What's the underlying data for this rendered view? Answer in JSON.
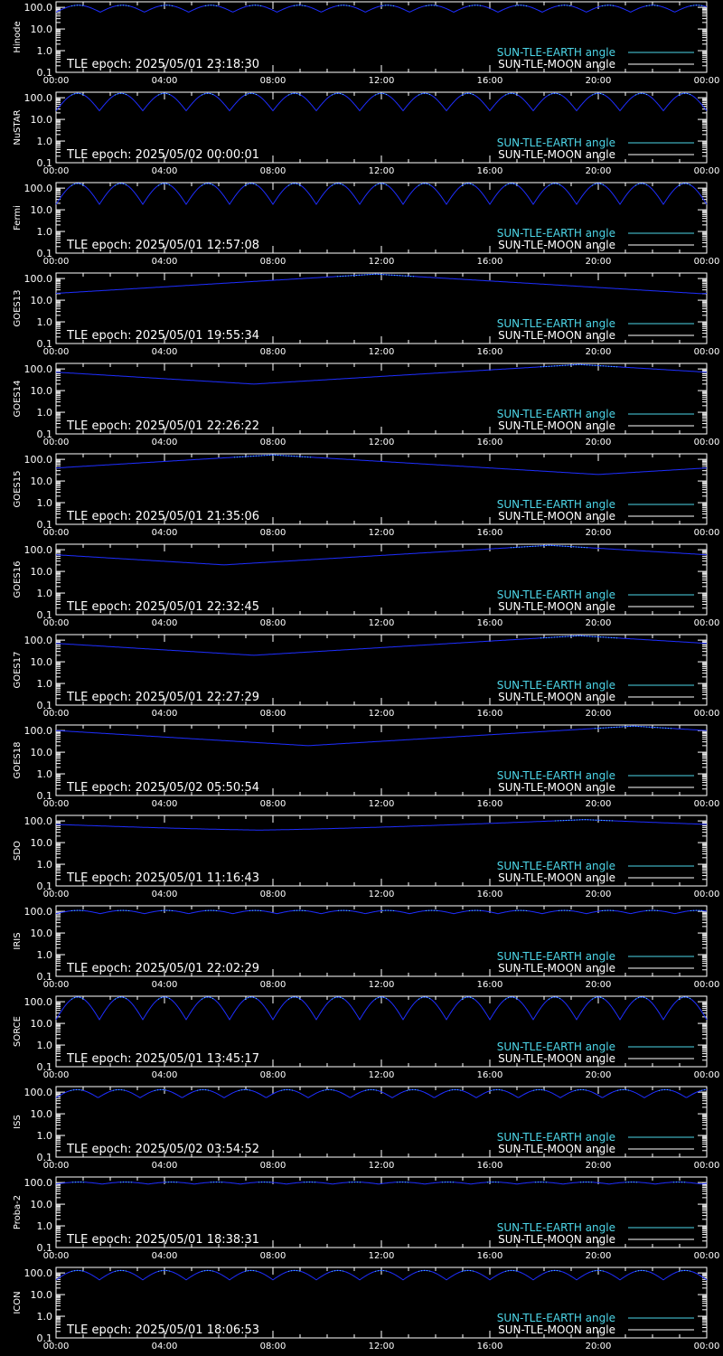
{
  "chart_data": {
    "type": "line",
    "x_tick_labels": [
      "00:00",
      "04:00",
      "08:00",
      "12:00",
      "16:00",
      "20:00",
      "00:00"
    ],
    "x_range_hours": [
      0,
      24
    ],
    "y_scale": "log",
    "ylim": [
      0.1,
      180
    ],
    "y_tick_labels": [
      "0.1",
      "1.0",
      "10.0",
      "100.0"
    ],
    "y_tick_values": [
      0.1,
      1,
      10,
      100
    ],
    "legend": {
      "position": "bottom-right",
      "entries": [
        {
          "label": "SUN-TLE-EARTH angle",
          "color": "#4dd6e8"
        },
        {
          "label": "SUN-TLE-MOON angle",
          "color": "#ffffff"
        }
      ]
    },
    "curve_color": "#1e2eff",
    "panels": [
      {
        "satellite": "Hinode",
        "epoch": "TLE epoch: 2025/05/01 23:18:30",
        "kind": "orbit",
        "period_hours": 1.63,
        "min_deg": 60,
        "max_deg": 125
      },
      {
        "satellite": "NuSTAR",
        "epoch": "TLE epoch: 2025/05/02 00:00:01",
        "kind": "orbit",
        "period_hours": 1.6,
        "min_deg": 25,
        "max_deg": 160
      },
      {
        "satellite": "Fermi",
        "epoch": "TLE epoch: 2025/05/01 12:57:08",
        "kind": "orbit",
        "period_hours": 1.6,
        "min_deg": 18,
        "max_deg": 165
      },
      {
        "satellite": "GOES13",
        "epoch": "TLE epoch: 2025/05/01 19:55:34",
        "kind": "geo",
        "min_time_hours": 23.8,
        "min_deg": 20,
        "max_deg": 160
      },
      {
        "satellite": "GOES14",
        "epoch": "TLE epoch: 2025/05/01 22:26:22",
        "kind": "geo",
        "min_time_hours": 7.3,
        "min_deg": 20,
        "max_deg": 160
      },
      {
        "satellite": "GOES15",
        "epoch": "TLE epoch: 2025/05/01 21:35:06",
        "kind": "geo",
        "min_time_hours": 20.0,
        "min_deg": 20,
        "max_deg": 160
      },
      {
        "satellite": "GOES16",
        "epoch": "TLE epoch: 2025/05/01 22:32:45",
        "kind": "geo",
        "min_time_hours": 6.2,
        "min_deg": 20,
        "max_deg": 160
      },
      {
        "satellite": "GOES17",
        "epoch": "TLE epoch: 2025/05/01 22:27:29",
        "kind": "geo",
        "min_time_hours": 7.3,
        "min_deg": 20,
        "max_deg": 160
      },
      {
        "satellite": "GOES18",
        "epoch": "TLE epoch: 2025/05/02 05:50:54",
        "kind": "geo",
        "min_time_hours": 9.3,
        "min_deg": 20,
        "max_deg": 160
      },
      {
        "satellite": "SDO",
        "epoch": "TLE epoch: 2025/05/01 11:16:43",
        "kind": "sdo",
        "min_time_hours": 7.5,
        "min_deg": 38,
        "max_deg": 115
      },
      {
        "satellite": "IRIS",
        "epoch": "TLE epoch: 2025/05/01 22:02:29",
        "kind": "orbit",
        "period_hours": 1.63,
        "min_deg": 78,
        "max_deg": 110
      },
      {
        "satellite": "SORCE",
        "epoch": "TLE epoch: 2025/05/01 13:45:17",
        "kind": "orbit",
        "period_hours": 1.6,
        "min_deg": 15,
        "max_deg": 165
      },
      {
        "satellite": "ISS",
        "epoch": "TLE epoch: 2025/05/02 03:54:52",
        "kind": "orbit",
        "period_hours": 1.55,
        "min_deg": 55,
        "max_deg": 130
      },
      {
        "satellite": "Proba-2",
        "epoch": "TLE epoch: 2025/05/01 18:38:31",
        "kind": "orbit",
        "period_hours": 1.7,
        "min_deg": 85,
        "max_deg": 105
      },
      {
        "satellite": "ICON",
        "epoch": "TLE epoch: 2025/05/01 18:06:53",
        "kind": "orbit",
        "period_hours": 1.6,
        "min_deg": 48,
        "max_deg": 130
      }
    ]
  }
}
